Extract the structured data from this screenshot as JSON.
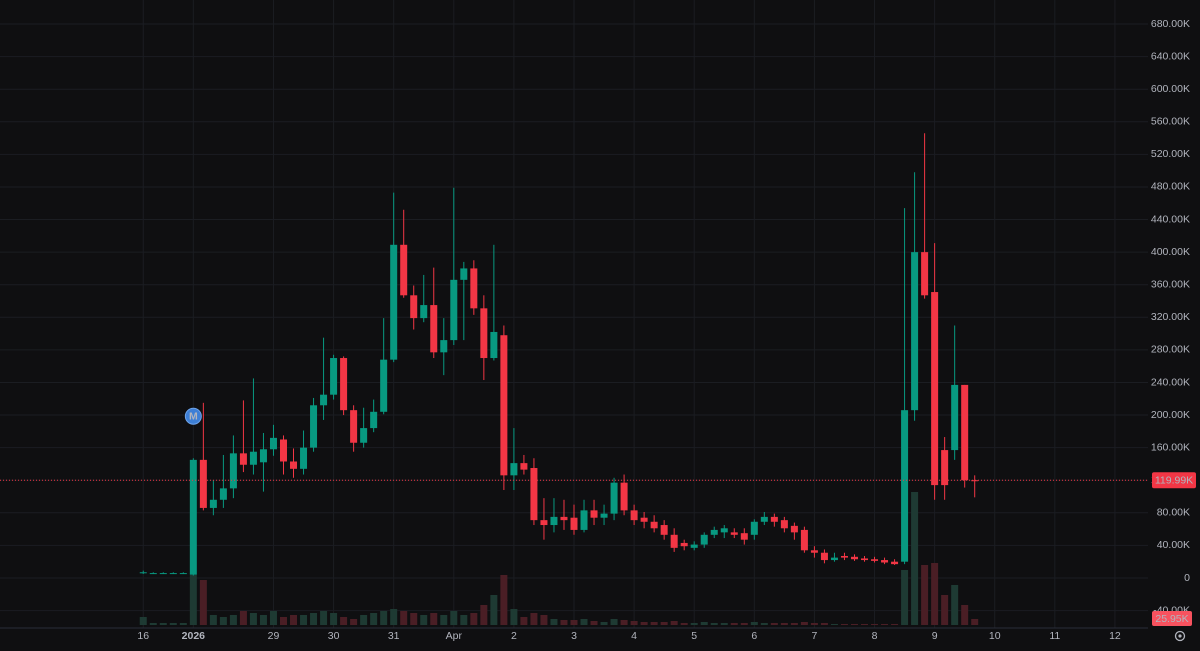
{
  "chart_data": {
    "type": "candlestick",
    "up_color": "#089981",
    "down_color": "#f23645",
    "up_volume_color": "#1e3a33",
    "down_volume_color": "#4a1e25",
    "grid": true,
    "xlim": [
      -14.3,
      100.3
    ],
    "ylim": [
      -61400,
      709500
    ],
    "xticks": [
      {
        "value": 0,
        "label": "16"
      },
      {
        "value": 5,
        "label": "2026"
      },
      {
        "value": 13,
        "label": "29"
      },
      {
        "value": 19,
        "label": "30"
      },
      {
        "value": 25,
        "label": "31"
      },
      {
        "value": 31,
        "label": "Apr"
      },
      {
        "value": 37,
        "label": "2"
      },
      {
        "value": 43,
        "label": "3"
      },
      {
        "value": 49,
        "label": "4"
      },
      {
        "value": 55,
        "label": "5"
      },
      {
        "value": 61,
        "label": "6"
      },
      {
        "value": 67,
        "label": "7"
      },
      {
        "value": 73,
        "label": "8"
      },
      {
        "value": 79,
        "label": "9"
      },
      {
        "value": 85,
        "label": "10"
      },
      {
        "value": 91,
        "label": "11"
      },
      {
        "value": 97,
        "label": "12"
      }
    ],
    "yticks": [
      {
        "value": -40000,
        "label": "-40.00K"
      },
      0,
      {
        "value": 40000,
        "label": "40.00K"
      },
      {
        "value": 80000,
        "label": "80.00K"
      },
      {
        "value": 120000,
        "label": "120.00K"
      },
      {
        "value": 160000,
        "label": "160.00K"
      },
      {
        "value": 200000,
        "label": "200.00K"
      },
      {
        "value": 240000,
        "label": "240.00K"
      },
      {
        "value": 280000,
        "label": "280.00K"
      },
      {
        "value": 320000,
        "label": "320.00K"
      },
      {
        "value": 360000,
        "label": "360.00K"
      },
      {
        "value": 400000,
        "label": "400.00K"
      },
      {
        "value": 440000,
        "label": "440.00K"
      },
      {
        "value": 480000,
        "label": "480.00K"
      },
      {
        "value": 520000,
        "label": "520.00K"
      },
      {
        "value": 560000,
        "label": "560.00K"
      },
      {
        "value": 600000,
        "label": "600.00K"
      },
      {
        "value": 640000,
        "label": "640.00K"
      },
      {
        "value": 680000,
        "label": "680.00K"
      }
    ],
    "x": [
      0,
      1,
      2,
      3,
      4,
      5,
      6,
      7,
      8,
      9,
      10,
      11,
      12,
      13,
      14,
      15,
      16,
      17,
      18,
      19,
      20,
      21,
      22,
      23,
      24,
      25,
      26,
      27,
      28,
      29,
      30,
      31,
      32,
      33,
      34,
      35,
      36,
      37,
      38,
      39,
      40,
      41,
      42,
      43,
      44,
      45,
      46,
      47,
      48,
      49,
      50,
      51,
      52,
      53,
      54,
      55,
      56,
      57,
      58,
      59,
      60,
      61,
      62,
      63,
      64,
      65,
      66,
      67,
      68,
      69,
      70,
      71,
      72,
      73,
      74,
      75,
      76,
      77,
      78,
      79,
      80,
      81,
      82,
      83
    ],
    "open": [
      6000,
      6000,
      6000,
      6000,
      6000,
      4000,
      145000,
      86000,
      96000,
      110000,
      153000,
      139000,
      142000,
      158000,
      170000,
      143000,
      134000,
      160000,
      212000,
      225000,
      270000,
      206000,
      166000,
      184000,
      204000,
      268000,
      409000,
      347000,
      319000,
      335000,
      277000,
      292000,
      366000,
      380000,
      331000,
      270000,
      298000,
      126000,
      141000,
      135000,
      71000,
      65000,
      75000,
      74000,
      59000,
      83000,
      74000,
      79000,
      117000,
      83000,
      74000,
      69000,
      65000,
      53000,
      43000,
      37000,
      41000,
      53000,
      56000,
      56000,
      55000,
      53000,
      69000,
      75000,
      71000,
      64000,
      59000,
      34000,
      31000,
      22000,
      27000,
      26000,
      24000,
      23000,
      22000,
      20000,
      20000,
      206000,
      400000,
      351000,
      157000,
      157000,
      237000,
      120000
    ],
    "high": [
      9000,
      7000,
      7000,
      7000,
      7000,
      147000,
      215000,
      120000,
      151000,
      175000,
      218000,
      245000,
      178000,
      188000,
      175000,
      159000,
      181000,
      221000,
      295000,
      274000,
      272000,
      212000,
      209000,
      219000,
      319000,
      473000,
      452000,
      359000,
      372000,
      381000,
      319000,
      479000,
      388000,
      390000,
      347000,
      409000,
      310000,
      184000,
      151000,
      147000,
      98000,
      98000,
      96000,
      90000,
      96000,
      96000,
      90000,
      123000,
      127000,
      90000,
      81000,
      77000,
      71000,
      61000,
      47000,
      45000,
      56000,
      63000,
      65000,
      61000,
      61000,
      72000,
      81000,
      79000,
      75000,
      68000,
      63000,
      39000,
      35000,
      31000,
      31000,
      29000,
      27000,
      26000,
      25000,
      23000,
      454000,
      498000,
      546000,
      411000,
      173000,
      310000,
      237000,
      126000
    ],
    "low": [
      5000,
      5000,
      5000,
      5000,
      5000,
      3000,
      83000,
      77000,
      86000,
      98000,
      130000,
      127000,
      106000,
      150000,
      127000,
      123000,
      127000,
      155000,
      194000,
      219000,
      200000,
      155000,
      160000,
      179000,
      201000,
      265000,
      344000,
      305000,
      314000,
      270000,
      249000,
      286000,
      292000,
      323000,
      243000,
      267000,
      108000,
      108000,
      127000,
      65000,
      47000,
      56000,
      59000,
      53000,
      56000,
      65000,
      65000,
      71000,
      77000,
      65000,
      61000,
      56000,
      47000,
      32000,
      34000,
      34000,
      37000,
      49000,
      49000,
      49000,
      41000,
      47000,
      65000,
      63000,
      56000,
      47000,
      31000,
      25000,
      18000,
      20000,
      22000,
      21000,
      20000,
      19000,
      17000,
      16000,
      17000,
      193000,
      343000,
      96000,
      96000,
      145000,
      111000,
      99000
    ],
    "close": [
      7000,
      6000,
      6000,
      6000,
      6000,
      145000,
      86000,
      96000,
      110000,
      153000,
      139000,
      155000,
      158000,
      172000,
      143000,
      134000,
      160000,
      212000,
      225000,
      270000,
      206000,
      166000,
      184000,
      204000,
      268000,
      409000,
      347000,
      319000,
      335000,
      277000,
      292000,
      366000,
      380000,
      331000,
      270000,
      302000,
      126000,
      141000,
      133000,
      71000,
      65000,
      75000,
      71000,
      59000,
      83000,
      74000,
      79000,
      117000,
      83000,
      71000,
      69000,
      61000,
      53000,
      37000,
      39000,
      41000,
      53000,
      59000,
      61000,
      53000,
      47000,
      69000,
      75000,
      69000,
      61000,
      56000,
      34000,
      31000,
      22000,
      25000,
      25000,
      23000,
      22000,
      21000,
      19000,
      17000,
      206000,
      400000,
      347000,
      114000,
      114000,
      237000,
      120000,
      119990
    ],
    "volume": [
      34400,
      8600,
      8600,
      8600,
      8600,
      215000,
      193500,
      43000,
      34400,
      43000,
      60200,
      51600,
      43000,
      60200,
      34400,
      43000,
      43000,
      51600,
      60200,
      51600,
      34400,
      25800,
      43000,
      51600,
      60200,
      68800,
      60200,
      51600,
      43000,
      51600,
      43000,
      60200,
      43000,
      51600,
      86000,
      129000,
      215000,
      68800,
      34400,
      51600,
      43000,
      25800,
      21500,
      21500,
      25800,
      17200,
      12900,
      25800,
      21500,
      17200,
      12900,
      12900,
      12900,
      17200,
      8600,
      8600,
      12900,
      8600,
      8600,
      8600,
      8600,
      12900,
      8600,
      8600,
      8600,
      8600,
      12900,
      8600,
      8600,
      4300,
      4300,
      4300,
      4300,
      4300,
      4300,
      4300,
      236500,
      571900,
      258000,
      266600,
      129000,
      172000,
      86000,
      25950
    ],
    "last_price": {
      "value": 119990,
      "label": "119.99K"
    },
    "last_volume": {
      "value": 25950,
      "label": "25.95K"
    },
    "annotations": [
      {
        "x": 5,
        "label": "M"
      }
    ]
  }
}
